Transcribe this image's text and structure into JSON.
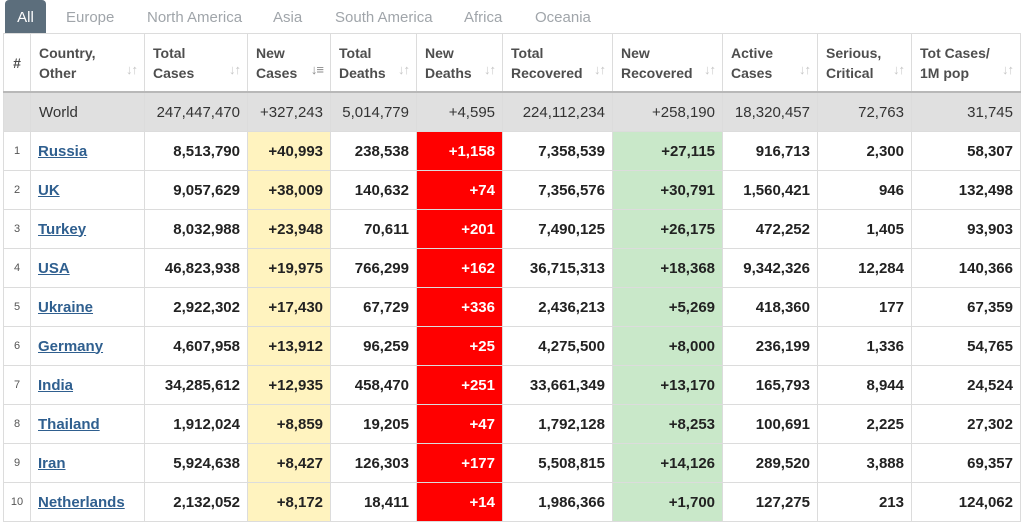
{
  "tabs": [
    {
      "label": "All",
      "active": true
    },
    {
      "label": "Europe"
    },
    {
      "label": "North America"
    },
    {
      "label": "Asia"
    },
    {
      "label": "South America"
    },
    {
      "label": "Africa"
    },
    {
      "label": "Oceania"
    }
  ],
  "columns": [
    {
      "key": "rank",
      "label": "#"
    },
    {
      "key": "country",
      "label": "Country,\nOther"
    },
    {
      "key": "total_cases",
      "label": "Total\nCases"
    },
    {
      "key": "new_cases",
      "label": "New\nCases",
      "sorted": true
    },
    {
      "key": "total_deaths",
      "label": "Total\nDeaths"
    },
    {
      "key": "new_deaths",
      "label": "New\nDeaths"
    },
    {
      "key": "total_recovered",
      "label": "Total\nRecovered"
    },
    {
      "key": "new_recovered",
      "label": "New\nRecovered"
    },
    {
      "key": "active_cases",
      "label": "Active\nCases"
    },
    {
      "key": "serious_critical",
      "label": "Serious,\nCritical"
    },
    {
      "key": "tot_cases_1m",
      "label": "Tot Cases/\n1M pop"
    }
  ],
  "world": {
    "country": "World",
    "total_cases": "247,447,470",
    "new_cases": "+327,243",
    "total_deaths": "5,014,779",
    "new_deaths": "+4,595",
    "total_recovered": "224,112,234",
    "new_recovered": "+258,190",
    "active_cases": "18,320,457",
    "serious_critical": "72,763",
    "tot_cases_1m": "31,745"
  },
  "rows": [
    {
      "rank": "1",
      "country": "Russia",
      "total_cases": "8,513,790",
      "new_cases": "+40,993",
      "total_deaths": "238,538",
      "new_deaths": "+1,158",
      "total_recovered": "7,358,539",
      "new_recovered": "+27,115",
      "active_cases": "916,713",
      "serious_critical": "2,300",
      "tot_cases_1m": "58,307"
    },
    {
      "rank": "2",
      "country": "UK",
      "total_cases": "9,057,629",
      "new_cases": "+38,009",
      "total_deaths": "140,632",
      "new_deaths": "+74",
      "total_recovered": "7,356,576",
      "new_recovered": "+30,791",
      "active_cases": "1,560,421",
      "serious_critical": "946",
      "tot_cases_1m": "132,498"
    },
    {
      "rank": "3",
      "country": "Turkey",
      "total_cases": "8,032,988",
      "new_cases": "+23,948",
      "total_deaths": "70,611",
      "new_deaths": "+201",
      "total_recovered": "7,490,125",
      "new_recovered": "+26,175",
      "active_cases": "472,252",
      "serious_critical": "1,405",
      "tot_cases_1m": "93,903"
    },
    {
      "rank": "4",
      "country": "USA",
      "total_cases": "46,823,938",
      "new_cases": "+19,975",
      "total_deaths": "766,299",
      "new_deaths": "+162",
      "total_recovered": "36,715,313",
      "new_recovered": "+18,368",
      "active_cases": "9,342,326",
      "serious_critical": "12,284",
      "tot_cases_1m": "140,366"
    },
    {
      "rank": "5",
      "country": "Ukraine",
      "total_cases": "2,922,302",
      "new_cases": "+17,430",
      "total_deaths": "67,729",
      "new_deaths": "+336",
      "total_recovered": "2,436,213",
      "new_recovered": "+5,269",
      "active_cases": "418,360",
      "serious_critical": "177",
      "tot_cases_1m": "67,359"
    },
    {
      "rank": "6",
      "country": "Germany",
      "total_cases": "4,607,958",
      "new_cases": "+13,912",
      "total_deaths": "96,259",
      "new_deaths": "+25",
      "total_recovered": "4,275,500",
      "new_recovered": "+8,000",
      "active_cases": "236,199",
      "serious_critical": "1,336",
      "tot_cases_1m": "54,765"
    },
    {
      "rank": "7",
      "country": "India",
      "total_cases": "34,285,612",
      "new_cases": "+12,935",
      "total_deaths": "458,470",
      "new_deaths": "+251",
      "total_recovered": "33,661,349",
      "new_recovered": "+13,170",
      "active_cases": "165,793",
      "serious_critical": "8,944",
      "tot_cases_1m": "24,524"
    },
    {
      "rank": "8",
      "country": "Thailand",
      "total_cases": "1,912,024",
      "new_cases": "+8,859",
      "total_deaths": "19,205",
      "new_deaths": "+47",
      "total_recovered": "1,792,128",
      "new_recovered": "+8,253",
      "active_cases": "100,691",
      "serious_critical": "2,225",
      "tot_cases_1m": "27,302"
    },
    {
      "rank": "9",
      "country": "Iran",
      "total_cases": "5,924,638",
      "new_cases": "+8,427",
      "total_deaths": "126,303",
      "new_deaths": "+177",
      "total_recovered": "5,508,815",
      "new_recovered": "+14,126",
      "active_cases": "289,520",
      "serious_critical": "3,888",
      "tot_cases_1m": "69,357"
    },
    {
      "rank": "10",
      "country": "Netherlands",
      "total_cases": "2,132,052",
      "new_cases": "+8,172",
      "total_deaths": "18,411",
      "new_deaths": "+14",
      "total_recovered": "1,986,366",
      "new_recovered": "+1,700",
      "active_cases": "127,275",
      "serious_critical": "213",
      "tot_cases_1m": "124,062"
    }
  ],
  "colors": {
    "new_cases_bg": "#fff3bf",
    "new_deaths_bg": "#ff0000",
    "new_recovered_bg": "#c9e8c9",
    "world_row_bg": "#e0e0e0",
    "active_tab_bg": "#5c6e7c"
  }
}
